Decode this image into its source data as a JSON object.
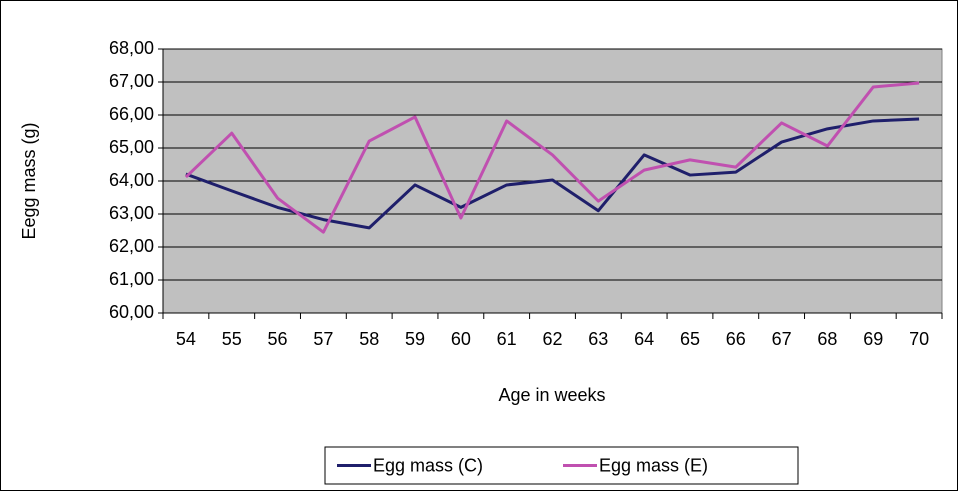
{
  "chart_data": {
    "type": "line",
    "y_label": "Eegg mass (g)",
    "x_label": "Age in weeks",
    "categories": [
      "54",
      "55",
      "56",
      "57",
      "58",
      "59",
      "60",
      "61",
      "62",
      "63",
      "64",
      "65",
      "66",
      "67",
      "68",
      "69",
      "70"
    ],
    "series": [
      {
        "name": "Egg mass (C)",
        "color": "#1f1f6b",
        "values": [
          64.21,
          63.7,
          63.2,
          62.83,
          62.58,
          63.88,
          63.2,
          63.88,
          64.03,
          63.1,
          64.79,
          64.18,
          64.27,
          65.18,
          65.58,
          65.82,
          65.88
        ]
      },
      {
        "name": "Egg mass (E)",
        "color": "#c050b0",
        "values": [
          64.12,
          65.45,
          63.48,
          62.45,
          65.21,
          65.94,
          62.88,
          65.82,
          64.79,
          63.39,
          64.33,
          64.64,
          64.42,
          65.76,
          65.06,
          66.85,
          66.97
        ]
      }
    ],
    "ylim": [
      60,
      68
    ],
    "yticks": [
      {
        "value": 60,
        "label": "60,00"
      },
      {
        "value": 61,
        "label": "61,00"
      },
      {
        "value": 62,
        "label": "62,00"
      },
      {
        "value": 63,
        "label": "63,00"
      },
      {
        "value": 64,
        "label": "64,00"
      },
      {
        "value": 65,
        "label": "65,00"
      },
      {
        "value": 66,
        "label": "66,00"
      },
      {
        "value": 67,
        "label": "67,00"
      },
      {
        "value": 68,
        "label": "68,00"
      }
    ],
    "grid": true,
    "plot_background": "#c0c0c0",
    "legend": "bottom"
  }
}
